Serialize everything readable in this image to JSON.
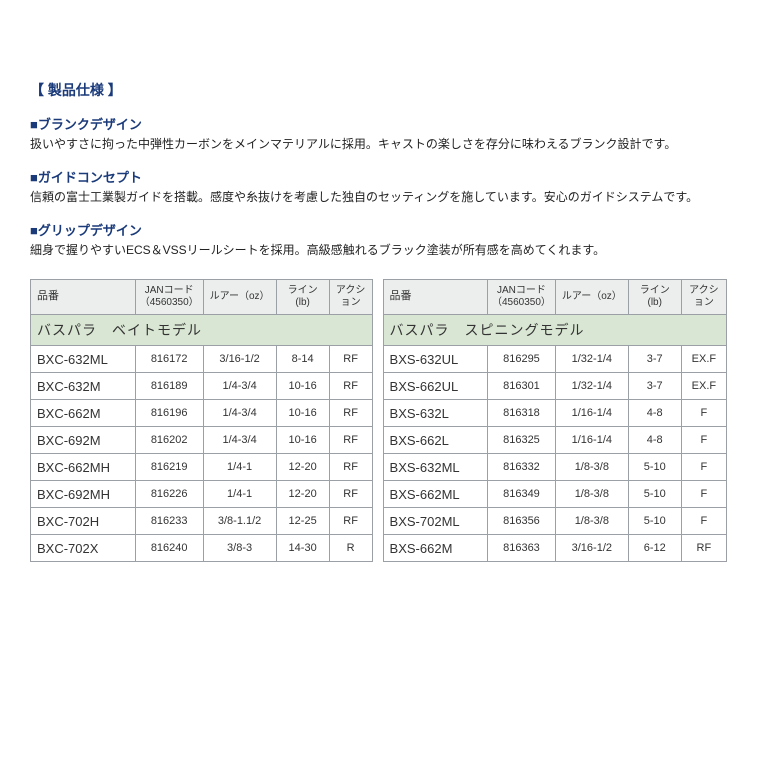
{
  "title": "【 製品仕様 】",
  "features": [
    {
      "heading": "■ブランクデザイン",
      "body": "扱いやすさに拘った中弾性カーボンをメインマテリアルに採用。キャストの楽しさを存分に味わえるブランク設計です。"
    },
    {
      "heading": "■ガイドコンセプト",
      "body": "信頼の富士工業製ガイドを搭載。感度や糸抜けを考慮した独自のセッティングを施しています。安心のガイドシステムです。"
    },
    {
      "heading": "■グリップデザイン",
      "body": "細身で握りやすいECS＆VSSリールシートを採用。高級感触れるブラック塗装が所有感を高めてくれます。"
    }
  ],
  "columns": {
    "part": "品番",
    "jan_line1": "JANコード",
    "jan_line2": "（4560350）",
    "lure": "ルアー（oz）",
    "line": "ライン(lb)",
    "action": "アクション"
  },
  "left": {
    "subheader": "バスパラ　ベイトモデル",
    "rows": [
      {
        "part": "BXC-632ML",
        "jan": "816172",
        "lure": "3/16-1/2",
        "line": "8-14",
        "action": "RF"
      },
      {
        "part": "BXC-632M",
        "jan": "816189",
        "lure": "1/4-3/4",
        "line": "10-16",
        "action": "RF"
      },
      {
        "part": "BXC-662M",
        "jan": "816196",
        "lure": "1/4-3/4",
        "line": "10-16",
        "action": "RF"
      },
      {
        "part": "BXC-692M",
        "jan": "816202",
        "lure": "1/4-3/4",
        "line": "10-16",
        "action": "RF"
      },
      {
        "part": "BXC-662MH",
        "jan": "816219",
        "lure": "1/4-1",
        "line": "12-20",
        "action": "RF"
      },
      {
        "part": "BXC-692MH",
        "jan": "816226",
        "lure": "1/4-1",
        "line": "12-20",
        "action": "RF"
      },
      {
        "part": "BXC-702H",
        "jan": "816233",
        "lure": "3/8-1.1/2",
        "line": "12-25",
        "action": "RF"
      },
      {
        "part": "BXC-702X",
        "jan": "816240",
        "lure": "3/8-3",
        "line": "14-30",
        "action": "R"
      }
    ]
  },
  "right": {
    "subheader": "バスパラ　スピニングモデル",
    "rows": [
      {
        "part": "BXS-632UL",
        "jan": "816295",
        "lure": "1/32-1/4",
        "line": "3-7",
        "action": "EX.F"
      },
      {
        "part": "BXS-662UL",
        "jan": "816301",
        "lure": "1/32-1/4",
        "line": "3-7",
        "action": "EX.F"
      },
      {
        "part": "BXS-632L",
        "jan": "816318",
        "lure": "1/16-1/4",
        "line": "4-8",
        "action": "F"
      },
      {
        "part": "BXS-662L",
        "jan": "816325",
        "lure": "1/16-1/4",
        "line": "4-8",
        "action": "F"
      },
      {
        "part": "BXS-632ML",
        "jan": "816332",
        "lure": "1/8-3/8",
        "line": "5-10",
        "action": "F"
      },
      {
        "part": "BXS-662ML",
        "jan": "816349",
        "lure": "1/8-3/8",
        "line": "5-10",
        "action": "F"
      },
      {
        "part": "BXS-702ML",
        "jan": "816356",
        "lure": "1/8-3/8",
        "line": "5-10",
        "action": "F"
      },
      {
        "part": "BXS-662M",
        "jan": "816363",
        "lure": "3/16-1/2",
        "line": "6-12",
        "action": "RF"
      }
    ]
  },
  "styling": {
    "title_color": "#1a3a7a",
    "heading_color": "#1a3a7a",
    "border_color": "#9aa0a6",
    "header_bg": "#eceded",
    "subheader_bg": "#d9e6d3",
    "body_bg": "#ffffff",
    "font_size_title": 14,
    "font_size_heading": 13,
    "font_size_body": 12,
    "font_size_table": 11
  }
}
